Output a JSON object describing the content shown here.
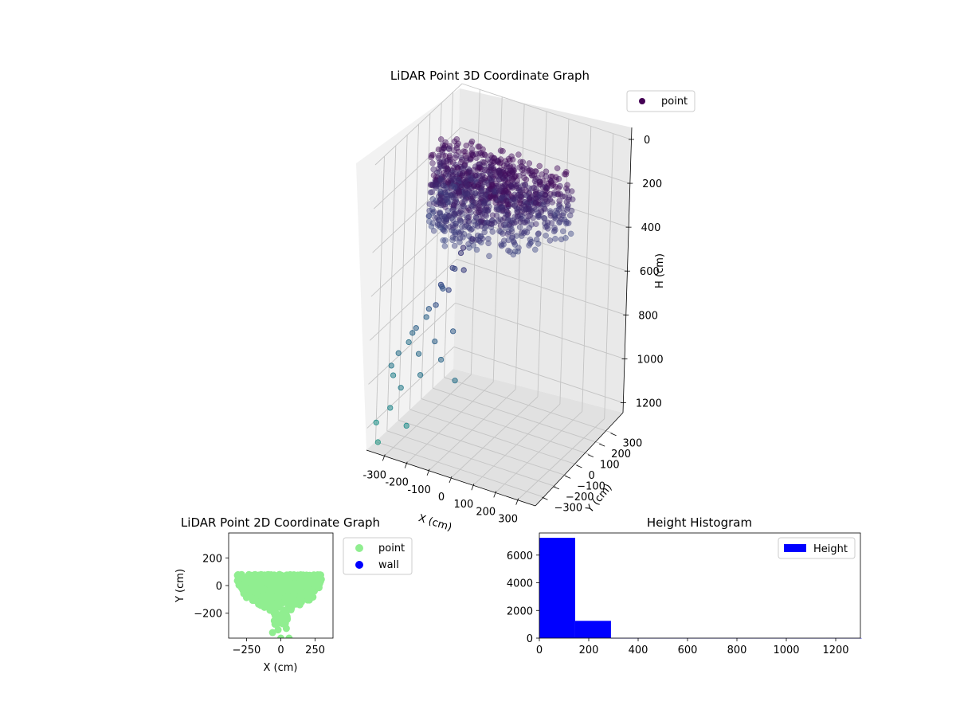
{
  "chart_data": [
    {
      "id": "scatter3d",
      "type": "scatter",
      "projection": "3d",
      "title": "LiDAR Point 3D Coordinate Graph",
      "xlabel": "X (cm)",
      "ylabel": "Y (cm)",
      "zlabel": "H (cm)",
      "xticks": [
        -300,
        -200,
        -100,
        0,
        100,
        200,
        300
      ],
      "yticks": [
        -300,
        -200,
        -100,
        0,
        100,
        200,
        300
      ],
      "zticks": [
        0,
        200,
        400,
        600,
        800,
        1000,
        1200
      ],
      "xlim": [
        -380,
        380
      ],
      "ylim": [
        -380,
        380
      ],
      "zlim": [
        1300,
        0
      ],
      "zaxis_inverted": true,
      "colormap": "viridis",
      "legend": {
        "position": "top-right",
        "entries": [
          {
            "label": "point",
            "color": "#440154"
          }
        ]
      },
      "grid": true,
      "dense_cluster": {
        "description": "thousands of points",
        "x_range": [
          -300,
          300
        ],
        "y_range": [
          -340,
          80
        ],
        "h_range": [
          30,
          320
        ]
      },
      "points": [
        {
          "x": -50,
          "y": -150,
          "h": 340
        },
        {
          "x": -80,
          "y": -170,
          "h": 380
        },
        {
          "x": -100,
          "y": -150,
          "h": 420
        },
        {
          "x": -60,
          "y": -200,
          "h": 460
        },
        {
          "x": -120,
          "y": -180,
          "h": 480
        },
        {
          "x": -140,
          "y": -120,
          "h": 520
        },
        {
          "x": -160,
          "y": -200,
          "h": 560
        },
        {
          "x": -180,
          "y": -150,
          "h": 600
        },
        {
          "x": -200,
          "y": -100,
          "h": 640
        },
        {
          "x": -100,
          "y": -250,
          "h": 540
        },
        {
          "x": -150,
          "y": -260,
          "h": 620
        },
        {
          "x": -220,
          "y": -180,
          "h": 700
        },
        {
          "x": -240,
          "y": -250,
          "h": 760
        },
        {
          "x": -260,
          "y": -120,
          "h": 780
        },
        {
          "x": -280,
          "y": -200,
          "h": 820
        },
        {
          "x": -300,
          "y": -280,
          "h": 880
        },
        {
          "x": -200,
          "y": -300,
          "h": 840
        },
        {
          "x": -180,
          "y": -320,
          "h": 920
        },
        {
          "x": -320,
          "y": -150,
          "h": 900
        },
        {
          "x": -340,
          "y": -260,
          "h": 960
        },
        {
          "x": -260,
          "y": -330,
          "h": 1000
        },
        {
          "x": -360,
          "y": -200,
          "h": 1040
        },
        {
          "x": -300,
          "y": -340,
          "h": 1100
        },
        {
          "x": -220,
          "y": -350,
          "h": 1150
        },
        {
          "x": -370,
          "y": -320,
          "h": 1200
        },
        {
          "x": -340,
          "y": -360,
          "h": 1260
        },
        {
          "x": -130,
          "y": -300,
          "h": 760
        },
        {
          "x": -90,
          "y": -320,
          "h": 820
        },
        {
          "x": -60,
          "y": -280,
          "h": 700
        },
        {
          "x": -30,
          "y": -310,
          "h": 900
        }
      ]
    },
    {
      "id": "scatter2d",
      "type": "scatter",
      "title": "LiDAR Point 2D Coordinate Graph",
      "xlabel": "X (cm)",
      "ylabel": "Y (cm)",
      "xticks": [
        -250,
        0,
        250
      ],
      "yticks": [
        200,
        0,
        -200
      ],
      "xlim": [
        -380,
        380
      ],
      "ylim": [
        -380,
        380
      ],
      "legend": {
        "position": "outside-right",
        "entries": [
          {
            "label": "point",
            "color": "#90ee90"
          },
          {
            "label": "wall",
            "color": "#0000ff"
          }
        ]
      },
      "series": [
        {
          "name": "point",
          "color": "#90ee90",
          "shape": "dome",
          "dome": {
            "x_range": [
              -320,
              300
            ],
            "y_top": 80,
            "y_bottom": -200,
            "stem_x": [
              -50,
              50
            ],
            "stem_bottom": -280
          },
          "extra_points": [
            {
              "x": -60,
              "y": -340
            },
            {
              "x": -20,
              "y": -320
            },
            {
              "x": 40,
              "y": -310
            },
            {
              "x": 0,
              "y": -380
            },
            {
              "x": 60,
              "y": -380
            }
          ]
        },
        {
          "name": "wall",
          "color": "#0000ff",
          "points": []
        }
      ]
    },
    {
      "id": "hist",
      "type": "bar",
      "title": "Height Histogram",
      "xticks": [
        0,
        200,
        400,
        600,
        800,
        1000,
        1200
      ],
      "yticks": [
        0,
        2000,
        4000,
        6000
      ],
      "xlim": [
        0,
        1300
      ],
      "ylim": [
        0,
        7600
      ],
      "legend": {
        "position": "top-right",
        "entries": [
          {
            "label": "Height",
            "color": "#0000ff"
          }
        ]
      },
      "bins": [
        {
          "x0": 0,
          "x1": 145,
          "count": 7250
        },
        {
          "x0": 145,
          "x1": 290,
          "count": 1250
        },
        {
          "x0": 290,
          "x1": 435,
          "count": 5
        },
        {
          "x0": 435,
          "x1": 580,
          "count": 4
        },
        {
          "x0": 580,
          "x1": 725,
          "count": 4
        },
        {
          "x0": 725,
          "x1": 870,
          "count": 3
        },
        {
          "x0": 870,
          "x1": 1015,
          "count": 3
        },
        {
          "x0": 1015,
          "x1": 1160,
          "count": 2
        },
        {
          "x0": 1160,
          "x1": 1305,
          "count": 3
        }
      ],
      "color": "#0000ff"
    }
  ]
}
